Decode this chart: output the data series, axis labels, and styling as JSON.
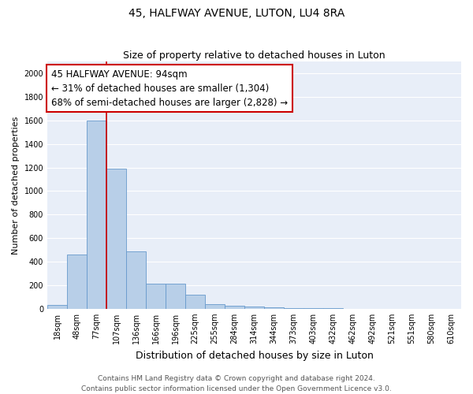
{
  "title": "45, HALFWAY AVENUE, LUTON, LU4 8RA",
  "subtitle": "Size of property relative to detached houses in Luton",
  "xlabel": "Distribution of detached houses by size in Luton",
  "ylabel": "Number of detached properties",
  "categories": [
    "18sqm",
    "48sqm",
    "77sqm",
    "107sqm",
    "136sqm",
    "166sqm",
    "196sqm",
    "225sqm",
    "255sqm",
    "284sqm",
    "314sqm",
    "344sqm",
    "373sqm",
    "403sqm",
    "432sqm",
    "462sqm",
    "492sqm",
    "521sqm",
    "551sqm",
    "580sqm",
    "610sqm"
  ],
  "values": [
    30,
    460,
    1600,
    1190,
    490,
    210,
    210,
    120,
    40,
    25,
    20,
    15,
    3,
    3,
    3,
    2,
    2,
    2,
    1,
    1,
    0
  ],
  "bar_color": "#b8cfe8",
  "bar_edge_color": "#6699cc",
  "figure_bg": "#ffffff",
  "axes_bg": "#e8eef8",
  "grid_color": "#ffffff",
  "annotation_box_facecolor": "#ffffff",
  "annotation_box_edgecolor": "#cc0000",
  "vline_color": "#cc0000",
  "annotation_line1": "45 HALFWAY AVENUE: 94sqm",
  "annotation_line2": "← 31% of detached houses are smaller (1,304)",
  "annotation_line3": "68% of semi-detached houses are larger (2,828) →",
  "vline_x": 2.5,
  "ylim": [
    0,
    2100
  ],
  "yticks": [
    0,
    200,
    400,
    600,
    800,
    1000,
    1200,
    1400,
    1600,
    1800,
    2000
  ],
  "footer_line1": "Contains HM Land Registry data © Crown copyright and database right 2024.",
  "footer_line2": "Contains public sector information licensed under the Open Government Licence v3.0.",
  "title_fontsize": 10,
  "subtitle_fontsize": 9,
  "xlabel_fontsize": 9,
  "ylabel_fontsize": 8,
  "tick_fontsize": 7,
  "footer_fontsize": 6.5,
  "annotation_fontsize": 8.5
}
